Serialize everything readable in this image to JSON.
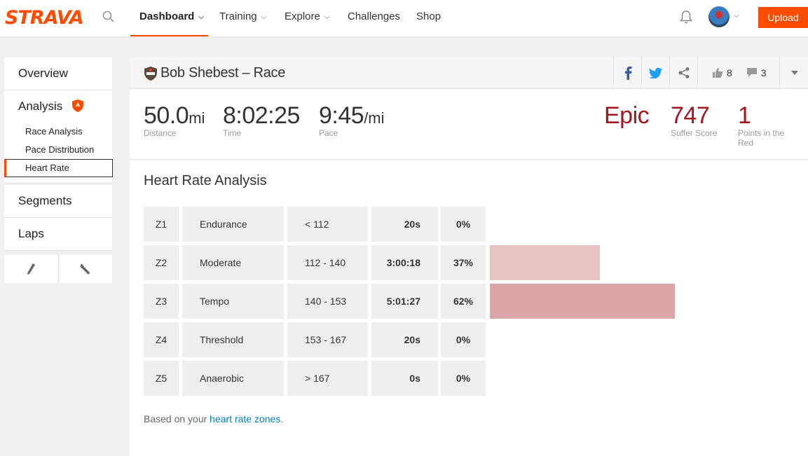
{
  "brand": {
    "logo_text": "STRAVA",
    "accent": "#fc4c02"
  },
  "nav": {
    "items": [
      {
        "label": "Dashboard",
        "has_menu": true,
        "active": true
      },
      {
        "label": "Training",
        "has_menu": true
      },
      {
        "label": "Explore",
        "has_menu": true
      },
      {
        "label": "Challenges",
        "has_menu": false
      },
      {
        "label": "Shop",
        "has_menu": false
      }
    ],
    "upload_label": "Upload"
  },
  "sidebar": {
    "overview": "Overview",
    "analysis": "Analysis",
    "sub_items": [
      "Race Analysis",
      "Pace Distribution",
      "Heart Rate"
    ],
    "segments": "Segments",
    "laps": "Laps"
  },
  "activity": {
    "title": "Bob Shebest – Race",
    "kudos_count": "8",
    "comment_count": "3"
  },
  "stats": {
    "distance": {
      "value": "50.0",
      "unit": "mi",
      "label": "Distance"
    },
    "time": {
      "value": "8:02:25",
      "label": "Time"
    },
    "pace": {
      "value": "9:45",
      "unit": "/mi",
      "label": "Pace"
    },
    "effort": {
      "value": "Epic"
    },
    "suffer": {
      "value": "747",
      "label": "Suffer Score"
    },
    "red_points": {
      "value": "1",
      "label": "Points in the Red"
    }
  },
  "heart_rate": {
    "title": "Heart Rate Analysis",
    "zones": [
      {
        "zone": "Z1",
        "name": "Endurance",
        "range": "< 112",
        "time": "20s",
        "pct": "0%",
        "fraction": 0
      },
      {
        "zone": "Z2",
        "name": "Moderate",
        "range": "112 - 140",
        "time": "3:00:18",
        "pct": "37%",
        "fraction": 0.37
      },
      {
        "zone": "Z3",
        "name": "Tempo",
        "range": "140 - 153",
        "time": "5:01:27",
        "pct": "62%",
        "fraction": 0.62
      },
      {
        "zone": "Z4",
        "name": "Threshold",
        "range": "153 - 167",
        "time": "20s",
        "pct": "0%",
        "fraction": 0
      },
      {
        "zone": "Z5",
        "name": "Anaerobic",
        "range": "> 167",
        "time": "0s",
        "pct": "0%",
        "fraction": 0
      }
    ],
    "bar_colors": [
      "#e8c3c4",
      "#e8c3c4",
      "#daa6a7",
      "#daa6a7",
      "#daa6a7"
    ],
    "note_prefix": "Based on your ",
    "note_link": "heart rate zones",
    "note_suffix": "."
  }
}
